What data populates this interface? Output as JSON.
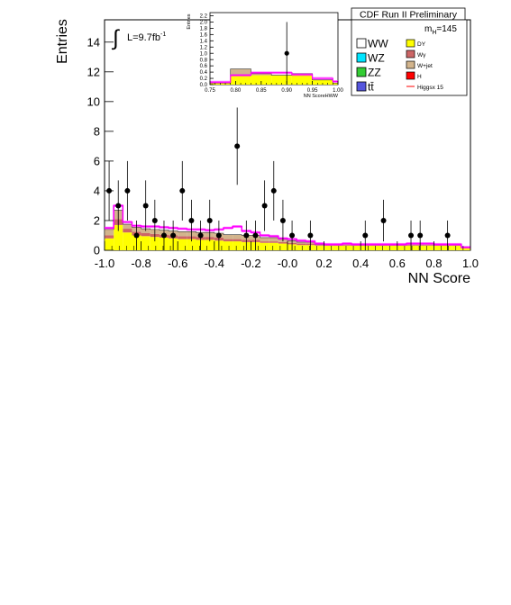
{
  "chart_data": [
    {
      "type": "histogram",
      "title": "CDF Run II Preliminary",
      "xlabel": "NN Score",
      "ylabel": "Entries",
      "xlim": [
        -1.0,
        1.0
      ],
      "ylim": [
        0,
        15.5
      ],
      "x_ticks": [
        "-1.0",
        "-0.8",
        "-0.6",
        "-0.4",
        "-0.2",
        "-0.0",
        "0.2",
        "0.4",
        "0.6",
        "0.8",
        "1.0"
      ],
      "y_ticks": [
        "0",
        "2",
        "4",
        "6",
        "8",
        "10",
        "12",
        "14"
      ],
      "luminosity_label": "L=9.7fb",
      "luminosity_exp": "-1",
      "mass_label": "m",
      "mass_sub": "H",
      "mass_value": "=145",
      "legend_placement": "top-right",
      "legend": [
        {
          "label": "WW",
          "color": "#ffffff"
        },
        {
          "label": "WZ",
          "color": "#00e5ff"
        },
        {
          "label": "ZZ",
          "color": "#33cc33"
        },
        {
          "label": "tt̄",
          "color": "#5555dd"
        },
        {
          "label": "DY",
          "color": "#ffff00"
        },
        {
          "label": "Wγ",
          "color": "#cc6666"
        },
        {
          "label": "W+jet",
          "color": "#d2b48c"
        },
        {
          "label": "H",
          "color": "#ff0000"
        },
        {
          "label": "Higgsx 15",
          "color": "#ff0000"
        }
      ],
      "bin_edges": [
        -1.0,
        -0.95,
        -0.9,
        -0.85,
        -0.8,
        -0.75,
        -0.7,
        -0.65,
        -0.6,
        -0.55,
        -0.5,
        -0.45,
        -0.4,
        -0.35,
        -0.3,
        -0.25,
        -0.2,
        -0.15,
        -0.1,
        -0.05,
        0.0,
        0.05,
        0.1,
        0.15,
        0.2,
        0.25,
        0.3,
        0.35,
        0.4,
        0.45,
        0.5,
        0.55,
        0.6,
        0.65,
        0.7,
        0.75,
        0.8,
        0.85,
        0.9,
        0.95,
        1.0
      ],
      "background_stack": [
        {
          "name": "DY",
          "color": "#ffff00",
          "values": [
            0.8,
            1.7,
            1.2,
            1.0,
            0.95,
            0.9,
            0.85,
            0.8,
            0.75,
            0.75,
            0.7,
            0.7,
            0.65,
            0.6,
            0.6,
            0.55,
            0.55,
            0.5,
            0.5,
            0.45,
            0.4,
            0.35,
            0.35,
            0.3,
            0.3,
            0.3,
            0.3,
            0.3,
            0.3,
            0.3,
            0.3,
            0.3,
            0.3,
            0.3,
            0.3,
            0.3,
            0.3,
            0.3,
            0.3,
            0.15
          ]
        },
        {
          "name": "Wγ",
          "color": "#cc6666",
          "values": [
            0.2,
            0.4,
            0.25,
            0.25,
            0.2,
            0.2,
            0.2,
            0.2,
            0.2,
            0.2,
            0.2,
            0.2,
            0.2,
            0.15,
            0.15,
            0.15,
            0.15,
            0.1,
            0.1,
            0.1,
            0.1,
            0.1,
            0.1,
            0.05,
            0.05,
            0.05,
            0.05,
            0.05,
            0.05,
            0.05,
            0.05,
            0.05,
            0.05,
            0.05,
            0.05,
            0.05,
            0.05,
            0.05,
            0.05,
            0.05
          ]
        },
        {
          "name": "W+jet",
          "color": "#d2b48c",
          "values": [
            0.4,
            0.6,
            0.3,
            0.3,
            0.3,
            0.3,
            0.3,
            0.3,
            0.3,
            0.3,
            0.3,
            0.3,
            0.3,
            0.3,
            0.3,
            0.3,
            0.3,
            0.25,
            0.25,
            0.2,
            0.15,
            0.1,
            0.1,
            0.05,
            0.05,
            0.05,
            0.1,
            0.05,
            0.05,
            0.05,
            0.05,
            0.05,
            0.05,
            0.1,
            0.1,
            0.1,
            0.05,
            0.05,
            0.05,
            0.0
          ]
        }
      ],
      "signal_line": {
        "name": "Higgsx 15",
        "color": "#ff00ff",
        "values": [
          1.5,
          3.0,
          1.9,
          1.65,
          1.6,
          1.6,
          1.55,
          1.5,
          1.45,
          1.4,
          1.4,
          1.35,
          1.4,
          1.5,
          1.6,
          1.3,
          1.2,
          1.0,
          0.95,
          0.8,
          0.75,
          0.65,
          0.6,
          0.45,
          0.4,
          0.4,
          0.45,
          0.4,
          0.4,
          0.4,
          0.4,
          0.4,
          0.4,
          0.45,
          0.45,
          0.45,
          0.4,
          0.4,
          0.4,
          0.2
        ]
      },
      "data_points": [
        {
          "x": -0.975,
          "y": 4,
          "err": 2.0
        },
        {
          "x": -0.925,
          "y": 3,
          "err": 1.7
        },
        {
          "x": -0.875,
          "y": 4,
          "err": 2.0
        },
        {
          "x": -0.825,
          "y": 1,
          "err": 1.0
        },
        {
          "x": -0.775,
          "y": 3,
          "err": 1.7
        },
        {
          "x": -0.725,
          "y": 2,
          "err": 1.4
        },
        {
          "x": -0.675,
          "y": 1,
          "err": 1.0
        },
        {
          "x": -0.625,
          "y": 1,
          "err": 1.0
        },
        {
          "x": -0.575,
          "y": 4,
          "err": 2.0
        },
        {
          "x": -0.525,
          "y": 2,
          "err": 1.4
        },
        {
          "x": -0.475,
          "y": 1,
          "err": 1.0
        },
        {
          "x": -0.425,
          "y": 2,
          "err": 1.4
        },
        {
          "x": -0.375,
          "y": 1,
          "err": 1.0
        },
        {
          "x": -0.275,
          "y": 7,
          "err": 2.6
        },
        {
          "x": -0.225,
          "y": 1,
          "err": 1.0
        },
        {
          "x": -0.175,
          "y": 1,
          "err": 1.0
        },
        {
          "x": -0.125,
          "y": 3,
          "err": 1.7
        },
        {
          "x": -0.075,
          "y": 4,
          "err": 2.0
        },
        {
          "x": -0.025,
          "y": 2,
          "err": 1.4
        },
        {
          "x": 0.025,
          "y": 1,
          "err": 1.0
        },
        {
          "x": 0.125,
          "y": 1,
          "err": 1.0
        },
        {
          "x": 0.425,
          "y": 1,
          "err": 1.0
        },
        {
          "x": 0.525,
          "y": 2,
          "err": 1.4
        },
        {
          "x": 0.675,
          "y": 1,
          "err": 1.0
        },
        {
          "x": 0.725,
          "y": 1,
          "err": 1.0
        },
        {
          "x": 0.875,
          "y": 1,
          "err": 1.0
        }
      ]
    },
    {
      "type": "histogram",
      "xlabel": "NN ScoreHWW",
      "ylabel": "Entries",
      "xlim": [
        0.75,
        1.0
      ],
      "ylim": [
        0,
        2.3
      ],
      "x_ticks": [
        "0.75",
        "0.80",
        "0.85",
        "0.90",
        "0.95",
        "1.00"
      ],
      "y_ticks": [
        "0.0",
        "0.2",
        "0.4",
        "0.6",
        "0.8",
        "1.0",
        "1.2",
        "1.4",
        "1.6",
        "1.8",
        "2.0",
        "2.2"
      ],
      "bin_edges": [
        0.75,
        0.79,
        0.83,
        0.87,
        0.91,
        0.95,
        0.99,
        1.0
      ],
      "background_stack": [
        {
          "name": "DY",
          "color": "#ffff00",
          "values": [
            0.05,
            0.3,
            0.3,
            0.3,
            0.3,
            0.15,
            0.05
          ]
        },
        {
          "name": "W+jet",
          "color": "#d2b48c",
          "values": [
            0.0,
            0.2,
            0.05,
            0.0,
            0.05,
            0.0,
            0.0
          ]
        }
      ],
      "signal_line": {
        "name": "Higgsx 15",
        "color": "#ff00ff",
        "values": [
          0.08,
          0.3,
          0.38,
          0.38,
          0.32,
          0.2,
          0.1
        ]
      },
      "data_points": [
        {
          "x": 0.9,
          "y": 1.0,
          "err": 1.0
        }
      ]
    }
  ]
}
